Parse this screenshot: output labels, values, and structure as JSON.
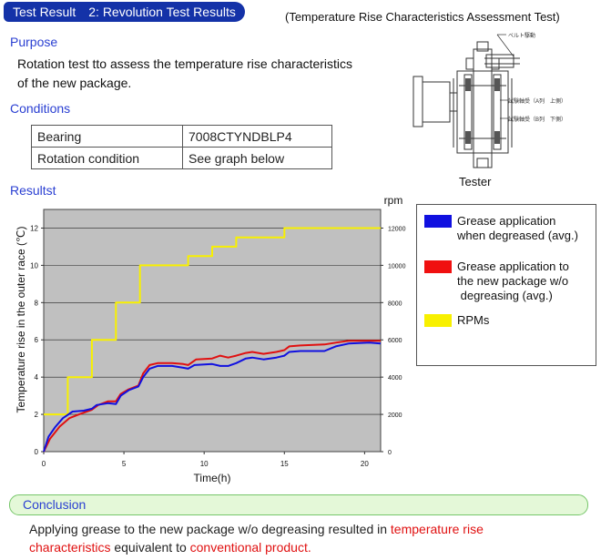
{
  "header": {
    "badge": "Test Result　2: Revolution Test Results",
    "subtitle": "(Temperature Rise Characteristics Assessment Test)"
  },
  "purpose": {
    "heading": "Purpose",
    "line1": "Rotation test tto assess the temperature rise characteristics",
    "line2": "of the new package."
  },
  "conditions": {
    "heading": "Conditions",
    "rows": [
      {
        "key": "Bearing",
        "value": "7008CTYNDBLP4"
      },
      {
        "key": "Rotation condition",
        "value": "See graph below"
      }
    ]
  },
  "tester": {
    "label": "Tester",
    "annotations": [
      "ベルト駆動",
      "試験軸受（A列　上側）",
      "試験軸受（B列　下側）"
    ]
  },
  "results": {
    "heading": "Resultst"
  },
  "chart_data": {
    "type": "line",
    "title": "",
    "xlabel": "Time(h)",
    "ylabel": "Temperature rise in the outer race (℃)",
    "y2label": "rpm",
    "xlim": [
      0,
      21
    ],
    "ylim": [
      0,
      13
    ],
    "y2lim": [
      0,
      13000
    ],
    "xticks": [
      0,
      5,
      10,
      15,
      20
    ],
    "yticks": [
      0,
      2,
      4,
      6,
      8,
      10,
      12
    ],
    "y2ticks": [
      0,
      2000,
      4000,
      6000,
      8000,
      10000,
      12000
    ],
    "grid": true,
    "background": "#c0c0c0",
    "series": [
      {
        "name": "Grease application when degreased (avg.)",
        "axis": "left",
        "color": "#1010e0",
        "x": [
          0,
          0.3,
          0.7,
          1.2,
          1.8,
          2.5,
          3.0,
          3.3,
          4.0,
          4.5,
          4.8,
          5.3,
          5.9,
          6.2,
          6.6,
          7.1,
          8.0,
          8.7,
          9.0,
          9.4,
          10.5,
          11.0,
          11.5,
          12.0,
          12.6,
          13.0,
          13.7,
          14.5,
          15.0,
          15.3,
          16.0,
          17.5,
          18.2,
          19.0,
          20.3,
          21.0
        ],
        "y": [
          0,
          0.8,
          1.3,
          1.8,
          2.15,
          2.2,
          2.3,
          2.5,
          2.6,
          2.55,
          3.0,
          3.3,
          3.5,
          4.0,
          4.45,
          4.6,
          4.6,
          4.5,
          4.45,
          4.65,
          4.7,
          4.6,
          4.6,
          4.75,
          5.0,
          5.05,
          4.95,
          5.05,
          5.15,
          5.35,
          5.4,
          5.4,
          5.65,
          5.8,
          5.85,
          5.8
        ]
      },
      {
        "name": "Grease application to the new package w/o degreasing (avg.)",
        "axis": "left",
        "color": "#e01010",
        "x": [
          0,
          0.4,
          1.0,
          1.6,
          2.2,
          3.0,
          3.4,
          4.0,
          4.5,
          4.8,
          5.3,
          5.9,
          6.2,
          6.6,
          7.1,
          8.0,
          8.7,
          9.0,
          9.5,
          10.5,
          11.0,
          11.5,
          12.0,
          12.6,
          13.0,
          13.7,
          14.5,
          15.0,
          15.3,
          16.0,
          17.5,
          18.2,
          19.0,
          20.3,
          21.0
        ],
        "y": [
          0,
          0.7,
          1.35,
          1.8,
          2.0,
          2.25,
          2.5,
          2.7,
          2.7,
          3.1,
          3.35,
          3.55,
          4.2,
          4.65,
          4.75,
          4.75,
          4.7,
          4.65,
          4.95,
          5.0,
          5.15,
          5.05,
          5.15,
          5.3,
          5.35,
          5.25,
          5.35,
          5.45,
          5.65,
          5.7,
          5.75,
          5.85,
          5.95,
          5.95,
          5.95
        ]
      },
      {
        "name": "RPMs",
        "axis": "right",
        "step": true,
        "color": "#f8f000",
        "x": [
          0,
          1.5,
          3.0,
          4.5,
          6.0,
          9.0,
          10.5,
          12.0,
          15.0,
          18.0,
          21.0
        ],
        "y": [
          2000,
          4000,
          6000,
          8000,
          10000,
          10500,
          11000,
          11500,
          12000,
          12000,
          12000
        ]
      }
    ]
  },
  "legend": {
    "items": [
      {
        "line1": "Grease application",
        "line2": "when degreased (avg.)",
        "line3": "",
        "color": "#1010e0"
      },
      {
        "line1": "Grease application to",
        "line2": "the new package w/o",
        "line3": " degreasing (avg.)",
        "color": "#f01010"
      },
      {
        "line1": "RPMs",
        "line2": "",
        "line3": "",
        "color": "#f8f000"
      }
    ]
  },
  "conclusion": {
    "heading": "Conclusion",
    "part1": "Applying grease to the new package w/o degreasing resulted in ",
    "part2": "temperature rise",
    "part3": "characteristics",
    "part4": " equivalent to ",
    "part5": "conventional product."
  }
}
